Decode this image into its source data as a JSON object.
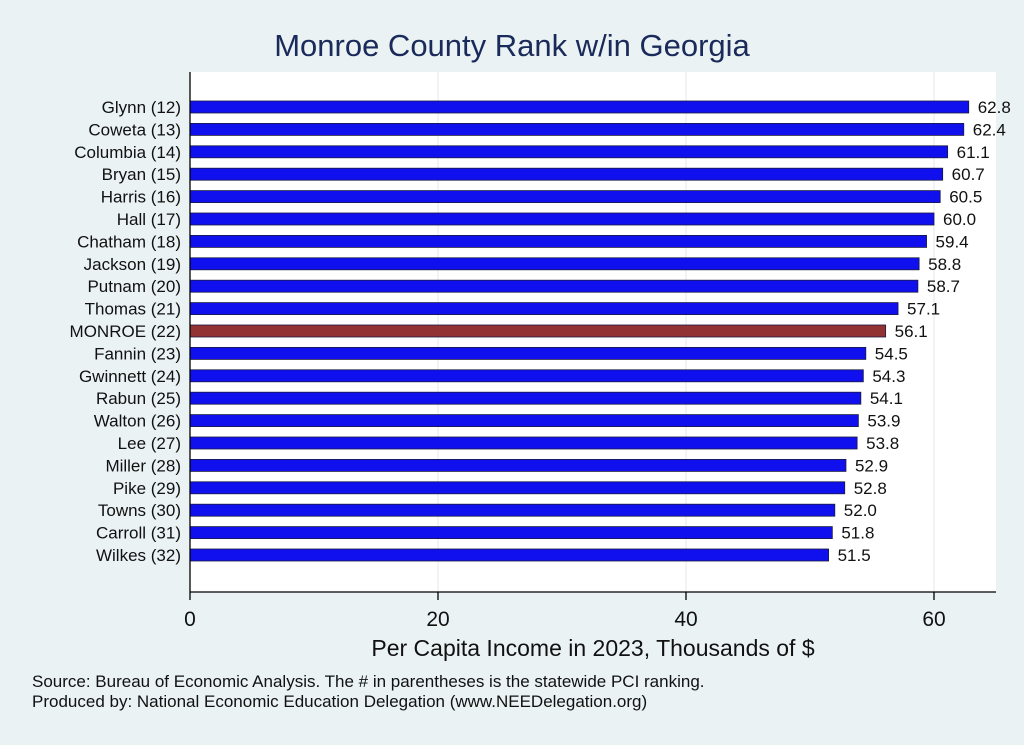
{
  "chart_data": {
    "type": "bar",
    "orientation": "horizontal",
    "title": "Monroe County Rank w/in Georgia",
    "xlabel": "Per Capita Income in 2023, Thousands of $",
    "ylabel": "",
    "xlim": [
      0,
      65
    ],
    "xticks": [
      0,
      20,
      40,
      60
    ],
    "grid": true,
    "categories": [
      "Glynn (12)",
      "Coweta (13)",
      "Columbia (14)",
      "Bryan (15)",
      "Harris (16)",
      "Hall (17)",
      "Chatham (18)",
      "Jackson (19)",
      "Putnam (20)",
      "Thomas (21)",
      "MONROE (22)",
      "Fannin (23)",
      "Gwinnett (24)",
      "Rabun (25)",
      "Walton (26)",
      "Lee (27)",
      "Miller (28)",
      "Pike (29)",
      "Towns (30)",
      "Carroll (31)",
      "Wilkes (32)"
    ],
    "values": [
      62.8,
      62.4,
      61.1,
      60.7,
      60.5,
      60.0,
      59.4,
      58.8,
      58.7,
      57.1,
      56.1,
      54.5,
      54.3,
      54.1,
      53.9,
      53.8,
      52.9,
      52.8,
      52.0,
      51.8,
      51.5
    ],
    "value_labels": [
      "62.8",
      "62.4",
      "61.1",
      "60.7",
      "60.5",
      "60.0",
      "59.4",
      "58.8",
      "58.7",
      "57.1",
      "56.1",
      "54.5",
      "54.3",
      "54.1",
      "53.9",
      "53.8",
      "52.9",
      "52.8",
      "52.0",
      "51.8",
      "51.5"
    ],
    "highlight_category": "MONROE (22)",
    "colors": {
      "bar": "#1010ee",
      "highlight": "#923232",
      "title": "#1a2a5a"
    }
  },
  "footer": {
    "source": "Source: Bureau of Economic Analysis. The # in parentheses is the statewide PCI ranking.",
    "producer": "Produced by: National Economic Education Delegation (www.NEEDelegation.org)"
  }
}
